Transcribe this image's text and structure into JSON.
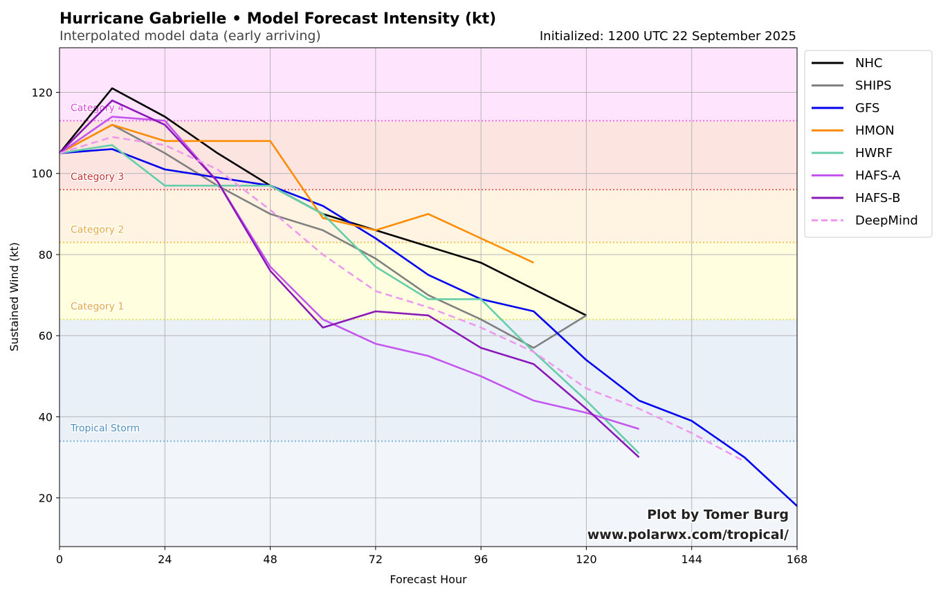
{
  "header": {
    "title": "Hurricane Gabrielle • Model Forecast Intensity (kt)",
    "subtitle": "Interpolated model data (early arriving)",
    "initialized": "Initialized: 1200 UTC 22 September 2025"
  },
  "credit": {
    "line1": "Plot by Tomer Burg",
    "line2": "www.polarwx.com/tropical/"
  },
  "chart_data": {
    "type": "line",
    "xlabel": "Forecast Hour",
    "ylabel": "Sustained Wind (kt)",
    "xlim": [
      0,
      168
    ],
    "ylim": [
      8,
      131
    ],
    "xticks": [
      0,
      24,
      48,
      72,
      96,
      120,
      144,
      168
    ],
    "yticks": [
      20,
      40,
      60,
      80,
      100,
      120
    ],
    "grid": true,
    "legend_position": "outside-top-right",
    "bands": [
      {
        "label": "",
        "from": 8,
        "to": 34,
        "color": "#f2f6fb"
      },
      {
        "label": "Tropical Storm",
        "from": 34,
        "to": 64,
        "color": "#e9f0f8",
        "line_color": "#7fb2dd",
        "label_color": "#4f8fc0"
      },
      {
        "label": "Category 1",
        "from": 64,
        "to": 83,
        "color": "#ffffe0",
        "line_color": "#e5e55a",
        "label_color": "#e6a93b"
      },
      {
        "label": "Category 2",
        "from": 83,
        "to": 96,
        "color": "#fff3e2",
        "line_color": "#f5c24a",
        "label_color": "#e6a93b"
      },
      {
        "label": "Category 3",
        "from": 96,
        "to": 113,
        "color": "#fce4e1",
        "line_color": "#e8635a",
        "label_color": "#c8332f"
      },
      {
        "label": "Category 4",
        "from": 113,
        "to": 131,
        "color": "#ffe4fd",
        "line_color": "#ee66ee",
        "label_color": "#dd44dd"
      }
    ],
    "series": [
      {
        "name": "NHC",
        "color": "#000000",
        "dash": false,
        "x": [
          0,
          12,
          24,
          36,
          48,
          60,
          72,
          96,
          120
        ],
        "y": [
          105,
          121,
          114,
          105,
          97,
          90,
          86,
          78,
          65
        ]
      },
      {
        "name": "SHIPS",
        "color": "#808080",
        "dash": false,
        "x": [
          0,
          12,
          24,
          36,
          48,
          60,
          72,
          84,
          96,
          108,
          120
        ],
        "y": [
          105,
          112,
          105,
          97,
          90,
          86,
          79,
          70,
          64,
          57,
          65
        ]
      },
      {
        "name": "GFS",
        "color": "#0000ee",
        "dash": false,
        "x": [
          0,
          12,
          24,
          36,
          48,
          60,
          72,
          84,
          96,
          108,
          120,
          132,
          144,
          156,
          168
        ],
        "y": [
          105,
          106,
          101,
          99,
          97,
          92,
          84,
          75,
          69,
          66,
          54,
          44,
          39,
          30,
          18
        ]
      },
      {
        "name": "HMON",
        "color": "#ff8c00",
        "dash": false,
        "x": [
          0,
          12,
          24,
          36,
          48,
          60,
          72,
          84,
          96,
          108
        ],
        "y": [
          105,
          112,
          108,
          108,
          108,
          89,
          86,
          90,
          84,
          78
        ]
      },
      {
        "name": "HWRF",
        "color": "#66cdaa",
        "dash": false,
        "x": [
          0,
          12,
          24,
          36,
          48,
          60,
          72,
          84,
          96,
          108,
          120,
          132
        ],
        "y": [
          105,
          107,
          97,
          97,
          97,
          90,
          77,
          69,
          69,
          56,
          44,
          31
        ]
      },
      {
        "name": "HAFS-A",
        "color": "#c455ee",
        "dash": false,
        "x": [
          0,
          12,
          24,
          36,
          48,
          60,
          72,
          84,
          96,
          108,
          120,
          132
        ],
        "y": [
          105,
          114,
          113,
          98,
          77,
          64,
          58,
          55,
          50,
          44,
          41,
          37
        ]
      },
      {
        "name": "HAFS-B",
        "color": "#8b18b8",
        "dash": false,
        "x": [
          0,
          12,
          24,
          36,
          48,
          60,
          72,
          84,
          96,
          108,
          120,
          132
        ],
        "y": [
          105,
          118,
          112,
          98,
          76,
          62,
          66,
          65,
          57,
          53,
          42,
          30
        ]
      },
      {
        "name": "DeepMind",
        "color": "#ee99ee",
        "dash": true,
        "x": [
          0,
          12,
          24,
          36,
          48,
          60,
          72,
          84,
          96,
          108,
          120,
          132,
          144,
          156
        ],
        "y": [
          105,
          109,
          107,
          101,
          91,
          80,
          71,
          67,
          62,
          56,
          47,
          42,
          36,
          29
        ]
      }
    ]
  }
}
